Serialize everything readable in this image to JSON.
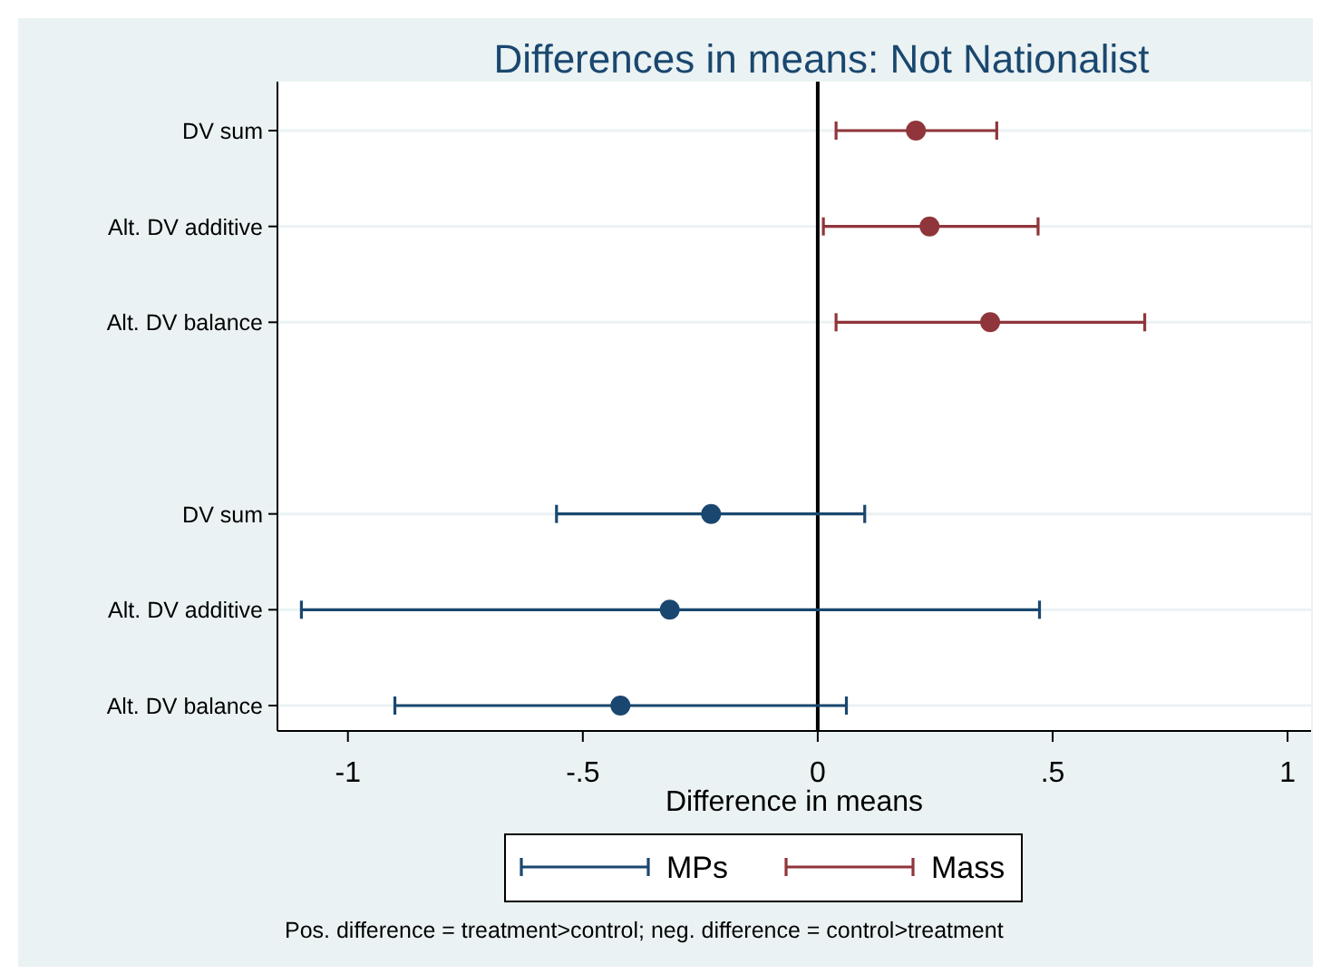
{
  "chart_data": {
    "type": "scatter",
    "orientation": "horizontal",
    "title": "Differences in means: Not Nationalist",
    "xlabel": "Difference in means",
    "categories": [
      "DV sum",
      "Alt. DV additive",
      "Alt. DV balance",
      null,
      "DV sum",
      "Alt. DV additive",
      "Alt. DV balance"
    ],
    "series": [
      {
        "name": "MPs",
        "color": "#1a476f",
        "values": [
          null,
          null,
          null,
          null,
          -0.227,
          -0.315,
          -0.42
        ],
        "errors": [
          null,
          null,
          null,
          null,
          [
            -0.556,
            0.1
          ],
          [
            -1.099,
            0.472
          ],
          [
            -0.9,
            0.061
          ]
        ]
      },
      {
        "name": "Mass",
        "color": "#90353b",
        "values": [
          0.209,
          0.238,
          0.367,
          null,
          null,
          null,
          null
        ],
        "errors": [
          [
            0.039,
            0.381
          ],
          [
            0.012,
            0.469
          ],
          [
            0.039,
            0.696
          ],
          null,
          null,
          null,
          null
        ]
      }
    ],
    "xlim": [
      -1.15,
      1.05
    ],
    "xticks": [
      -1,
      {
        "value": -0.5,
        "label": "-.5"
      },
      0,
      {
        "value": 0.5,
        "label": ".5"
      },
      1
    ],
    "ref_lines": [
      {
        "axis": "x",
        "value": 0,
        "color": "#000000"
      }
    ],
    "grid": "y",
    "legend": "bottom",
    "marker": "circle",
    "annotations": [
      "Pos. difference = treatment>control; neg. difference = control>treatment"
    ]
  }
}
